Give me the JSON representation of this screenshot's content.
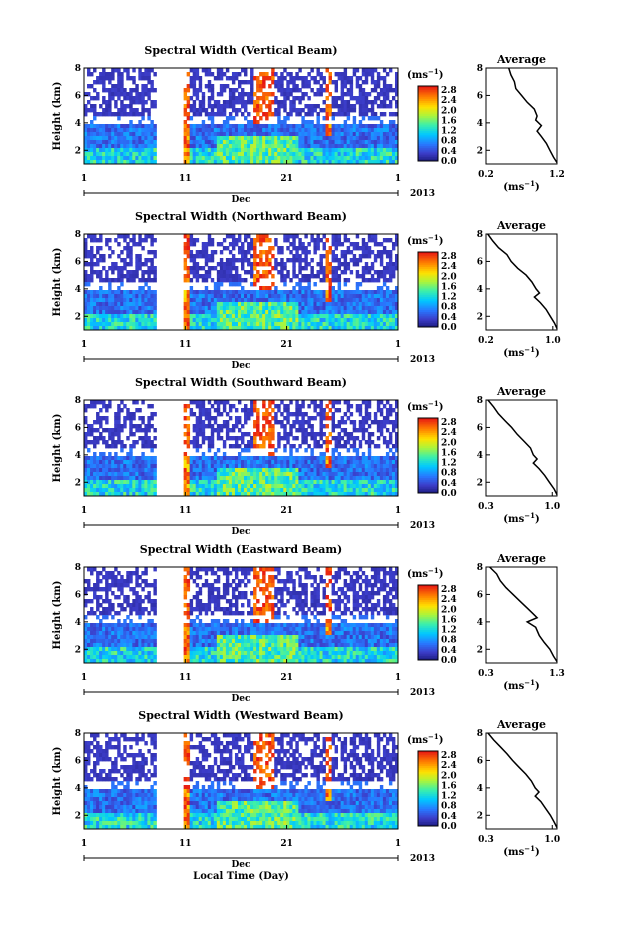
{
  "chart_data": [
    {
      "type": "heatmap",
      "title": "Spectral Width (Vertical Beam)",
      "ylabel": "Height (km)",
      "x_ticks": [
        "1",
        "11",
        "21",
        "1"
      ],
      "x_month": "Dec",
      "x_year": "2013",
      "ylim": [
        1,
        8
      ],
      "y_ticks": [
        "8",
        "6",
        "4",
        "2"
      ],
      "colorbar": {
        "unit": "(ms",
        "unit_exp": "−1",
        "unit_close": ")",
        "labels": [
          "2.8",
          "2.4",
          "2.0",
          "1.6",
          "1.2",
          "0.8",
          "0.4",
          "0.0"
        ],
        "range": [
          0,
          2.8
        ]
      },
      "average": {
        "title": "Average",
        "xlabel": "(ms",
        "xlabel_exp": "−1",
        "xlabel_close": ")",
        "x_ticks": [
          "0.2",
          "1.2"
        ],
        "xlim": [
          0.2,
          1.2
        ],
        "y_ticks": [
          "8",
          "6",
          "4",
          "2"
        ],
        "profile": [
          [
            0.52,
            8.0
          ],
          [
            0.55,
            7.5
          ],
          [
            0.6,
            7.0
          ],
          [
            0.62,
            6.5
          ],
          [
            0.7,
            6.0
          ],
          [
            0.78,
            5.5
          ],
          [
            0.88,
            5.0
          ],
          [
            0.92,
            4.5
          ],
          [
            0.9,
            4.2
          ],
          [
            0.98,
            3.8
          ],
          [
            0.92,
            3.4
          ],
          [
            0.98,
            3.0
          ],
          [
            1.05,
            2.5
          ],
          [
            1.1,
            2.0
          ],
          [
            1.15,
            1.5
          ],
          [
            1.2,
            1.1
          ]
        ]
      }
    },
    {
      "type": "heatmap",
      "title": "Spectral Width (Northward Beam)",
      "ylabel": "Height (km)",
      "x_ticks": [
        "1",
        "11",
        "21",
        "1"
      ],
      "x_month": "Dec",
      "x_year": "2013",
      "ylim": [
        1,
        8
      ],
      "y_ticks": [
        "8",
        "6",
        "4",
        "2"
      ],
      "colorbar": {
        "unit": "(ms",
        "unit_exp": "−1",
        "unit_close": ")",
        "labels": [
          "2.8",
          "2.4",
          "2.0",
          "1.6",
          "1.2",
          "0.8",
          "0.4",
          "0.0"
        ],
        "range": [
          0,
          2.8
        ]
      },
      "average": {
        "title": "Average",
        "xlabel": "(ms",
        "xlabel_exp": "−1",
        "xlabel_close": ")",
        "x_ticks": [
          "0.2",
          "1.0"
        ],
        "xlim": [
          0.2,
          1.05
        ],
        "y_ticks": [
          "8",
          "6",
          "4",
          "2"
        ],
        "profile": [
          [
            0.22,
            8.0
          ],
          [
            0.28,
            7.5
          ],
          [
            0.35,
            7.0
          ],
          [
            0.45,
            6.5
          ],
          [
            0.5,
            6.0
          ],
          [
            0.58,
            5.5
          ],
          [
            0.68,
            5.0
          ],
          [
            0.75,
            4.5
          ],
          [
            0.8,
            4.0
          ],
          [
            0.84,
            3.7
          ],
          [
            0.78,
            3.4
          ],
          [
            0.85,
            3.0
          ],
          [
            0.92,
            2.5
          ],
          [
            0.97,
            2.0
          ],
          [
            1.02,
            1.5
          ],
          [
            1.05,
            1.1
          ]
        ]
      }
    },
    {
      "type": "heatmap",
      "title": "Spectral Width (Southward Beam)",
      "ylabel": "Height (km)",
      "x_ticks": [
        "1",
        "11",
        "21",
        "1"
      ],
      "x_month": "Dec",
      "x_year": "2013",
      "ylim": [
        1,
        8
      ],
      "y_ticks": [
        "8",
        "6",
        "4",
        "2"
      ],
      "colorbar": {
        "unit": "(ms",
        "unit_exp": "−1",
        "unit_close": ")",
        "labels": [
          "2.8",
          "2.4",
          "2.0",
          "1.6",
          "1.2",
          "0.8",
          "0.4",
          "0.0"
        ],
        "range": [
          0,
          2.8
        ]
      },
      "average": {
        "title": "Average",
        "xlabel": "(ms",
        "xlabel_exp": "−1",
        "xlabel_close": ")",
        "x_ticks": [
          "0.3",
          "1.0"
        ],
        "xlim": [
          0.3,
          1.05
        ],
        "y_ticks": [
          "8",
          "6",
          "4",
          "2"
        ],
        "profile": [
          [
            0.32,
            8.0
          ],
          [
            0.38,
            7.5
          ],
          [
            0.43,
            7.0
          ],
          [
            0.5,
            6.5
          ],
          [
            0.57,
            6.0
          ],
          [
            0.63,
            5.5
          ],
          [
            0.7,
            5.0
          ],
          [
            0.77,
            4.5
          ],
          [
            0.8,
            4.0
          ],
          [
            0.84,
            3.7
          ],
          [
            0.8,
            3.4
          ],
          [
            0.86,
            3.0
          ],
          [
            0.92,
            2.5
          ],
          [
            0.97,
            2.0
          ],
          [
            1.02,
            1.5
          ],
          [
            1.05,
            1.1
          ]
        ]
      }
    },
    {
      "type": "heatmap",
      "title": "Spectral Width (Eastward Beam)",
      "ylabel": "Height (km)",
      "x_ticks": [
        "1",
        "11",
        "21",
        "1"
      ],
      "x_month": "Dec",
      "x_year": "2013",
      "ylim": [
        1,
        8
      ],
      "y_ticks": [
        "8",
        "6",
        "4",
        "2"
      ],
      "colorbar": {
        "unit": "(ms",
        "unit_exp": "−1",
        "unit_close": ")",
        "labels": [
          "2.8",
          "2.4",
          "2.0",
          "1.6",
          "1.2",
          "0.8",
          "0.4",
          "0.0"
        ],
        "range": [
          0,
          2.8
        ]
      },
      "average": {
        "title": "Average",
        "xlabel": "(ms",
        "xlabel_exp": "−1",
        "xlabel_close": ")",
        "x_ticks": [
          "0.3",
          "1.3"
        ],
        "xlim": [
          0.3,
          1.3
        ],
        "y_ticks": [
          "8",
          "6",
          "4",
          "2"
        ],
        "profile": [
          [
            0.35,
            8.0
          ],
          [
            0.45,
            7.5
          ],
          [
            0.5,
            7.0
          ],
          [
            0.58,
            6.5
          ],
          [
            0.68,
            6.0
          ],
          [
            0.78,
            5.5
          ],
          [
            0.88,
            5.0
          ],
          [
            0.96,
            4.6
          ],
          [
            1.02,
            4.3
          ],
          [
            0.88,
            4.0
          ],
          [
            1.0,
            3.6
          ],
          [
            1.05,
            3.0
          ],
          [
            1.12,
            2.5
          ],
          [
            1.2,
            2.0
          ],
          [
            1.25,
            1.5
          ],
          [
            1.3,
            1.1
          ]
        ]
      }
    },
    {
      "type": "heatmap",
      "title": "Spectral Width (Westward Beam)",
      "ylabel": "Height (km)",
      "xlabel": "Local Time (Day)",
      "x_ticks": [
        "1",
        "11",
        "21",
        "1"
      ],
      "x_month": "Dec",
      "x_year": "2013",
      "ylim": [
        1,
        8
      ],
      "y_ticks": [
        "8",
        "6",
        "4",
        "2"
      ],
      "colorbar": {
        "unit": "(ms",
        "unit_exp": "−1",
        "unit_close": ")",
        "labels": [
          "2.8",
          "2.4",
          "2.0",
          "1.6",
          "1.2",
          "0.8",
          "0.4",
          "0.0"
        ],
        "range": [
          0,
          2.8
        ]
      },
      "average": {
        "title": "Average",
        "xlabel": "(ms",
        "xlabel_exp": "−1",
        "xlabel_close": ")",
        "x_ticks": [
          "0.3",
          "1.0"
        ],
        "xlim": [
          0.3,
          1.05
        ],
        "y_ticks": [
          "8",
          "6",
          "4",
          "2"
        ],
        "profile": [
          [
            0.32,
            8.0
          ],
          [
            0.38,
            7.5
          ],
          [
            0.45,
            7.0
          ],
          [
            0.52,
            6.5
          ],
          [
            0.58,
            6.0
          ],
          [
            0.65,
            5.5
          ],
          [
            0.72,
            5.0
          ],
          [
            0.78,
            4.5
          ],
          [
            0.82,
            4.0
          ],
          [
            0.86,
            3.7
          ],
          [
            0.82,
            3.4
          ],
          [
            0.88,
            3.0
          ],
          [
            0.93,
            2.5
          ],
          [
            0.98,
            2.0
          ],
          [
            1.02,
            1.5
          ],
          [
            1.05,
            1.1
          ]
        ]
      }
    }
  ]
}
